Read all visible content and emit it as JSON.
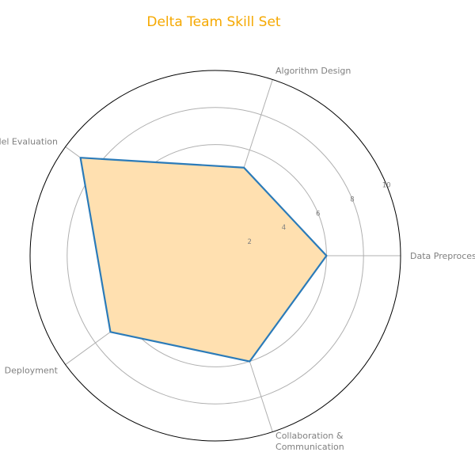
{
  "colors": {
    "title": "#f5a800",
    "line": "#2b7bb9",
    "fill": "#ffe0b0",
    "grid": "#b0b0b0",
    "outer": "#000000",
    "label": "#808080"
  },
  "chart_data": {
    "type": "radar",
    "title": "Delta Team Skill Set",
    "axes": [
      "Data Preprocessing",
      "Algorithm Design",
      "Model Evaluation",
      "Deployment",
      "Collaboration & Communication"
    ],
    "axis_label_lines": [
      [
        "Data Preprocessing"
      ],
      [
        "Algorithm Design"
      ],
      [
        "Model Evaluation"
      ],
      [
        "Deployment"
      ],
      [
        "Collaboration &",
        "Communication"
      ]
    ],
    "values": [
      6,
      5,
      9,
      7,
      6
    ],
    "rlim": [
      0,
      10
    ],
    "rticks": [
      "2",
      "4",
      "6",
      "8",
      "10"
    ],
    "grid": true
  }
}
